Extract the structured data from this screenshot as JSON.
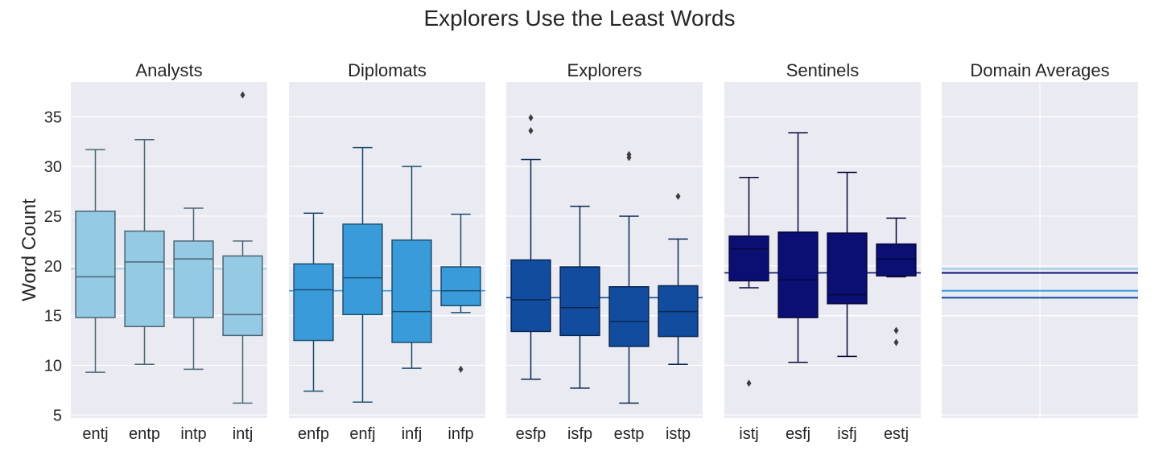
{
  "chart_data": {
    "type": "box",
    "title": "Explorers Use the Least Words",
    "ylabel": "Word Count",
    "ylim": [
      4.7,
      38.5
    ],
    "yticks": [
      5,
      10,
      15,
      20,
      25,
      30,
      35
    ],
    "grid": true,
    "panels": [
      {
        "title": "Analysts",
        "color": "#95cae4",
        "mean": 19.7,
        "boxes": [
          {
            "label": "entj",
            "whislo": 9.3,
            "q1": 14.8,
            "med": 18.9,
            "q3": 25.5,
            "whishi": 31.7,
            "fliers": []
          },
          {
            "label": "entp",
            "whislo": 10.1,
            "q1": 13.9,
            "med": 20.4,
            "q3": 23.5,
            "whishi": 32.7,
            "fliers": []
          },
          {
            "label": "intp",
            "whislo": 9.6,
            "q1": 14.8,
            "med": 20.7,
            "q3": 22.5,
            "whishi": 25.8,
            "fliers": []
          },
          {
            "label": "intj",
            "whislo": 6.2,
            "q1": 13.0,
            "med": 15.1,
            "q3": 21.0,
            "whishi": 22.5,
            "fliers": [
              37.2
            ]
          }
        ]
      },
      {
        "title": "Diplomats",
        "color": "#3a9bdb",
        "mean": 17.5,
        "boxes": [
          {
            "label": "enfp",
            "whislo": 7.4,
            "q1": 12.5,
            "med": 17.6,
            "q3": 20.2,
            "whishi": 25.3,
            "fliers": []
          },
          {
            "label": "enfj",
            "whislo": 6.3,
            "q1": 15.1,
            "med": 18.8,
            "q3": 24.2,
            "whishi": 31.9,
            "fliers": []
          },
          {
            "label": "infj",
            "whislo": 9.7,
            "q1": 12.3,
            "med": 15.4,
            "q3": 22.6,
            "whishi": 30.0,
            "fliers": []
          },
          {
            "label": "infp",
            "whislo": 15.3,
            "q1": 16.0,
            "med": 17.5,
            "q3": 19.9,
            "whishi": 25.2,
            "fliers": [
              9.6
            ]
          }
        ]
      },
      {
        "title": "Explorers",
        "color": "#114c9f",
        "mean": 16.8,
        "boxes": [
          {
            "label": "esfp",
            "whislo": 8.6,
            "q1": 13.4,
            "med": 16.6,
            "q3": 20.6,
            "whishi": 30.7,
            "fliers": [
              33.6,
              34.9
            ]
          },
          {
            "label": "isfp",
            "whislo": 7.7,
            "q1": 13.0,
            "med": 15.8,
            "q3": 19.9,
            "whishi": 26.0,
            "fliers": []
          },
          {
            "label": "estp",
            "whislo": 6.2,
            "q1": 11.9,
            "med": 14.4,
            "q3": 17.9,
            "whishi": 25.0,
            "fliers": [
              30.9,
              31.2
            ]
          },
          {
            "label": "istp",
            "whislo": 10.1,
            "q1": 12.9,
            "med": 15.4,
            "q3": 18.0,
            "whishi": 22.7,
            "fliers": [
              27.0
            ]
          }
        ]
      },
      {
        "title": "Sentinels",
        "color": "#0b0e73",
        "mean": 19.3,
        "boxes": [
          {
            "label": "istj",
            "whislo": 17.8,
            "q1": 18.5,
            "med": 21.7,
            "q3": 23.0,
            "whishi": 28.9,
            "fliers": [
              8.2
            ]
          },
          {
            "label": "esfj",
            "whislo": 10.3,
            "q1": 14.8,
            "med": 18.6,
            "q3": 23.4,
            "whishi": 33.4,
            "fliers": []
          },
          {
            "label": "isfj",
            "whislo": 10.9,
            "q1": 16.2,
            "med": 17.1,
            "q3": 23.3,
            "whishi": 29.4,
            "fliers": []
          },
          {
            "label": "estj",
            "whislo": 18.9,
            "q1": 19.0,
            "med": 20.7,
            "q3": 22.2,
            "whishi": 24.8,
            "fliers": [
              12.3,
              13.5
            ]
          }
        ]
      },
      {
        "title": "Domain Averages",
        "type": "hlines",
        "lines": [
          {
            "y": 19.7,
            "color": "#95cae4"
          },
          {
            "y": 17.5,
            "color": "#3a9bdb"
          },
          {
            "y": 16.8,
            "color": "#114c9f"
          },
          {
            "y": 19.3,
            "color": "#0b0e73"
          }
        ]
      }
    ]
  }
}
